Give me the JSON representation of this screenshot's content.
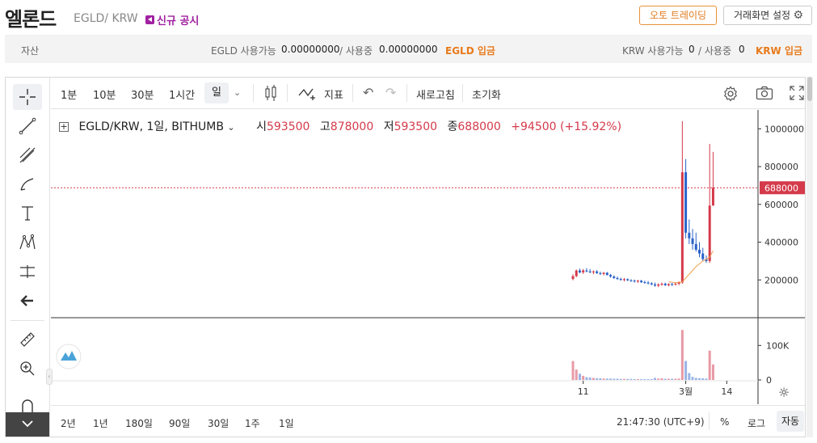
{
  "header": {
    "coin_name": "엘론드",
    "pair": "EGLD/ KRW",
    "notice": "신규 공시",
    "auto_trading": "오토 트레이딩",
    "screen_setting": "거래화면 설정"
  },
  "asset": {
    "label": "자산",
    "egld_available_label": "EGLD 사용가능",
    "egld_available": "0.00000000",
    "in_use_label": "/ 사용중",
    "egld_in_use": "0.00000000",
    "egld_deposit": "EGLD 입금",
    "krw_available_label": "KRW 사용가능",
    "krw_available": "0",
    "krw_in_use": "0",
    "krw_deposit": "KRW 입금"
  },
  "toolbar": {
    "intervals": [
      "1분",
      "10분",
      "30분",
      "1시간"
    ],
    "selected_interval": "일",
    "indicator": "지표",
    "refresh": "새로고침",
    "reset": "초기화"
  },
  "legend": {
    "symbol": "EGLD/KRW, 1일, BITHUMB",
    "open_label": "시",
    "open": "593500",
    "high_label": "고",
    "high": "878000",
    "low_label": "저",
    "low": "593500",
    "close_label": "종",
    "close": "688000",
    "change": "+94500 (+15.92%)"
  },
  "bottom": {
    "ranges": [
      "2년",
      "1년",
      "180일",
      "90일",
      "30일",
      "1주",
      "1일"
    ],
    "time": "21:47:30 (UTC+9)",
    "percent": "%",
    "log": "로그",
    "auto": "자동"
  },
  "colors": {
    "up": "#d43a4a",
    "down": "#2a62c9",
    "accent": "#e87a1b"
  },
  "chart_data": {
    "type": "candlestick",
    "price_axis_ticks": [
      1000000,
      800000,
      600000,
      400000,
      200000
    ],
    "price_axis_labels": [
      "1000000",
      "800000",
      "600000",
      "400000",
      "200000"
    ],
    "price_range": [
      0,
      1100000
    ],
    "current_price": 688000,
    "current_price_label": "688000",
    "volume_axis_labels": [
      "100K",
      "0"
    ],
    "volume_range": [
      0,
      150000
    ],
    "x_ticks": [
      {
        "label": "11",
        "index": 3
      },
      {
        "label": "3월",
        "index": 33
      },
      {
        "label": "14",
        "index": 45
      }
    ],
    "candles": [
      {
        "o": 205000,
        "h": 230000,
        "l": 198000,
        "c": 220000,
        "v": 55000
      },
      {
        "o": 220000,
        "h": 255000,
        "l": 215000,
        "c": 250000,
        "v": 30000
      },
      {
        "o": 250000,
        "h": 260000,
        "l": 235000,
        "c": 240000,
        "v": 18000
      },
      {
        "o": 240000,
        "h": 258000,
        "l": 232000,
        "c": 250000,
        "v": 12000
      },
      {
        "o": 250000,
        "h": 262000,
        "l": 240000,
        "c": 245000,
        "v": 8000
      },
      {
        "o": 245000,
        "h": 258000,
        "l": 236000,
        "c": 240000,
        "v": 7000
      },
      {
        "o": 240000,
        "h": 250000,
        "l": 230000,
        "c": 245000,
        "v": 6000
      },
      {
        "o": 245000,
        "h": 252000,
        "l": 232000,
        "c": 236000,
        "v": 5000
      },
      {
        "o": 236000,
        "h": 244000,
        "l": 226000,
        "c": 232000,
        "v": 5000
      },
      {
        "o": 232000,
        "h": 242000,
        "l": 224000,
        "c": 238000,
        "v": 4000
      },
      {
        "o": 238000,
        "h": 242000,
        "l": 224000,
        "c": 226000,
        "v": 4000
      },
      {
        "o": 226000,
        "h": 232000,
        "l": 212000,
        "c": 218000,
        "v": 4000
      },
      {
        "o": 218000,
        "h": 224000,
        "l": 206000,
        "c": 210000,
        "v": 3500
      },
      {
        "o": 210000,
        "h": 218000,
        "l": 200000,
        "c": 205000,
        "v": 3500
      },
      {
        "o": 205000,
        "h": 212000,
        "l": 196000,
        "c": 200000,
        "v": 3000
      },
      {
        "o": 200000,
        "h": 210000,
        "l": 192000,
        "c": 204000,
        "v": 3000
      },
      {
        "o": 204000,
        "h": 208000,
        "l": 194000,
        "c": 198000,
        "v": 3000
      },
      {
        "o": 198000,
        "h": 204000,
        "l": 190000,
        "c": 196000,
        "v": 3000
      },
      {
        "o": 196000,
        "h": 202000,
        "l": 186000,
        "c": 192000,
        "v": 2500
      },
      {
        "o": 192000,
        "h": 200000,
        "l": 184000,
        "c": 196000,
        "v": 2500
      },
      {
        "o": 196000,
        "h": 200000,
        "l": 184000,
        "c": 188000,
        "v": 2500
      },
      {
        "o": 188000,
        "h": 196000,
        "l": 180000,
        "c": 186000,
        "v": 2500
      },
      {
        "o": 186000,
        "h": 194000,
        "l": 176000,
        "c": 182000,
        "v": 2500
      },
      {
        "o": 182000,
        "h": 188000,
        "l": 172000,
        "c": 176000,
        "v": 2500
      },
      {
        "o": 176000,
        "h": 186000,
        "l": 164000,
        "c": 170000,
        "v": 6000
      },
      {
        "o": 170000,
        "h": 182000,
        "l": 162000,
        "c": 176000,
        "v": 4000
      },
      {
        "o": 176000,
        "h": 186000,
        "l": 168000,
        "c": 180000,
        "v": 5000
      },
      {
        "o": 180000,
        "h": 186000,
        "l": 168000,
        "c": 172000,
        "v": 3500
      },
      {
        "o": 172000,
        "h": 182000,
        "l": 166000,
        "c": 178000,
        "v": 3500
      },
      {
        "o": 178000,
        "h": 184000,
        "l": 168000,
        "c": 176000,
        "v": 3500
      },
      {
        "o": 176000,
        "h": 188000,
        "l": 170000,
        "c": 180000,
        "v": 3500
      },
      {
        "o": 180000,
        "h": 192000,
        "l": 172000,
        "c": 186000,
        "v": 4000
      },
      {
        "o": 186000,
        "h": 1040000,
        "l": 180000,
        "c": 770000,
        "v": 145000
      },
      {
        "o": 770000,
        "h": 840000,
        "l": 420000,
        "c": 450000,
        "v": 55000
      },
      {
        "o": 450000,
        "h": 520000,
        "l": 390000,
        "c": 420000,
        "v": 20000
      },
      {
        "o": 420000,
        "h": 470000,
        "l": 360000,
        "c": 390000,
        "v": 9000
      },
      {
        "o": 390000,
        "h": 450000,
        "l": 350000,
        "c": 360000,
        "v": 6000
      },
      {
        "o": 360000,
        "h": 400000,
        "l": 320000,
        "c": 340000,
        "v": 5000
      },
      {
        "o": 340000,
        "h": 370000,
        "l": 300000,
        "c": 310000,
        "v": 5000
      },
      {
        "o": 310000,
        "h": 330000,
        "l": 290000,
        "c": 300000,
        "v": 4000
      },
      {
        "o": 300000,
        "h": 920000,
        "l": 290000,
        "c": 593500,
        "v": 85000
      },
      {
        "o": 593500,
        "h": 878000,
        "l": 593500,
        "c": 688000,
        "v": 45000
      }
    ],
    "ma_points": [
      {
        "index": 28,
        "v": 190000
      },
      {
        "index": 30,
        "v": 185000
      },
      {
        "index": 32,
        "v": 190000
      },
      {
        "index": 34,
        "v": 230000
      },
      {
        "index": 36,
        "v": 270000
      },
      {
        "index": 38,
        "v": 300000
      },
      {
        "index": 40,
        "v": 320000
      },
      {
        "index": 41,
        "v": 355000
      }
    ]
  }
}
